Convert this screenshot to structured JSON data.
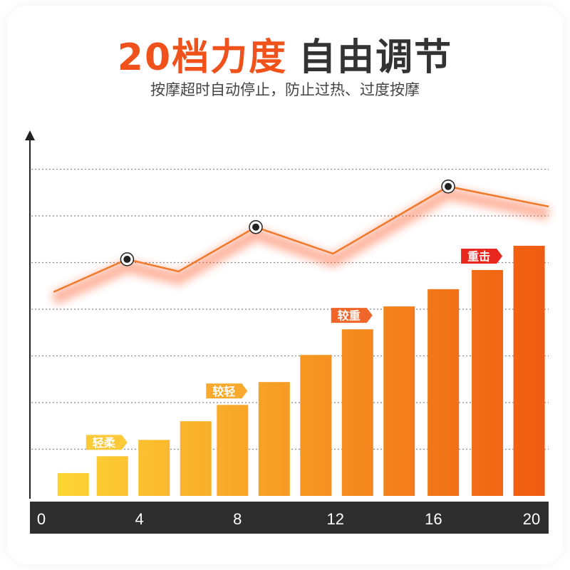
{
  "header": {
    "title_highlight": "20档力度",
    "title_rest": "自由调节",
    "subtitle": "按摩超时自动停止，防止过热、过度按摩"
  },
  "chart_data": {
    "type": "bar",
    "title": "20档力度 自由调节",
    "xlabel": "",
    "ylabel": "",
    "xlim": [
      0,
      20
    ],
    "ylim": [
      0,
      7
    ],
    "grid": true,
    "x_ticks": [
      "0",
      "4",
      "8",
      "12",
      "16",
      "20"
    ],
    "bars": {
      "x": [
        1.3,
        2.9,
        4.6,
        6.3,
        7.8,
        9.5,
        11.2,
        12.9,
        14.6,
        16.4,
        18.2,
        19.9
      ],
      "values": [
        0.49,
        0.85,
        1.2,
        1.6,
        1.95,
        2.44,
        3.02,
        3.57,
        4.06,
        4.43,
        4.84,
        5.36
      ],
      "color_start": "#fdd535",
      "color_end": "#ef5a10"
    },
    "line": {
      "x": [
        0.5,
        3.5,
        5.6,
        8.75,
        11.9,
        16.6,
        20.7
      ],
      "y": [
        4.37,
        5.07,
        4.81,
        5.76,
        5.19,
        6.63,
        6.2
      ],
      "markers_at": [
        1,
        3,
        5
      ],
      "color": "#f07a2a"
    },
    "annotations": [
      {
        "text": "轻柔",
        "x": 2.9,
        "color": "#fbc93a"
      },
      {
        "text": "较轻",
        "x": 7.8,
        "color": "#f8a92e"
      },
      {
        "text": "较重",
        "x": 12.9,
        "color": "#f0662a"
      },
      {
        "text": "重击",
        "x": 18.2,
        "color": "#e8281e"
      }
    ],
    "axis_bar_color": "#2e2e2e"
  }
}
